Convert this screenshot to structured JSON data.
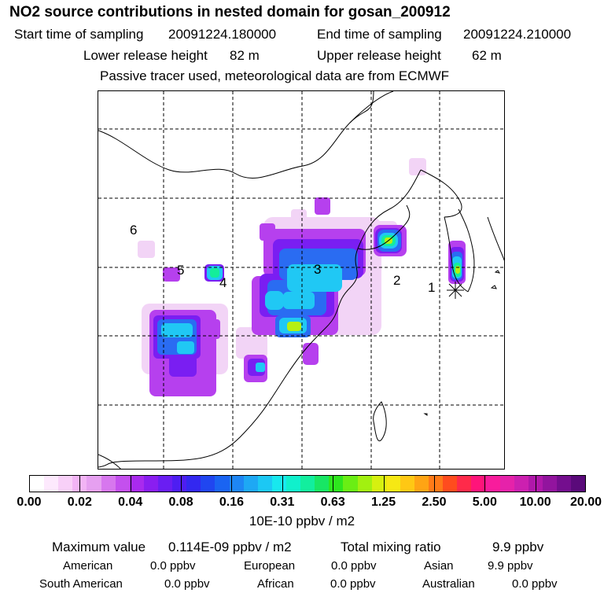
{
  "title": "NO2 source contributions in nested domain for gosan_200912",
  "sampling": {
    "start_label": "Start time of sampling",
    "start_value": "20091224.180000",
    "end_label": "End time of sampling",
    "end_value": "20091224.210000"
  },
  "release": {
    "lower_label": "Lower release height",
    "lower_value": "82 m",
    "upper_label": "Upper release height",
    "upper_value": "62 m"
  },
  "note": "Passive tracer used, meteorological data are from ECMWF",
  "map": {
    "region_labels": [
      "1",
      "2",
      "3",
      "4",
      "5",
      "6"
    ],
    "receptor_icon": "asterisk-marker"
  },
  "colorbar": {
    "ticks": [
      "0.00",
      "0.02",
      "0.04",
      "0.08",
      "0.16",
      "0.31",
      "0.63",
      "1.25",
      "2.50",
      "5.00",
      "10.00",
      "20.00"
    ],
    "colors": [
      "#ffffff",
      "#fde9fd",
      "#f8d0f8",
      "#f2b4f5",
      "#e6a0f0",
      "#d777ee",
      "#c450ee",
      "#a92aee",
      "#8a1ef0",
      "#6a1ef2",
      "#4e1ef2",
      "#3328f0",
      "#2046f0",
      "#1a64f2",
      "#1e86f4",
      "#1ea8f4",
      "#1cc8f4",
      "#18e8ee",
      "#10f0cc",
      "#12ee9e",
      "#18e664",
      "#2ee61e",
      "#6aee14",
      "#a2f010",
      "#d6f010",
      "#f6e814",
      "#ffc814",
      "#ffa414",
      "#ff7a18",
      "#ff4c1e",
      "#ff2a4a",
      "#ff147a",
      "#f81c9c",
      "#e622aa",
      "#cc20b0",
      "#b018aa",
      "#92149e",
      "#740e8e",
      "#5a0a7a"
    ],
    "unit": "10E-10 ppbv / m2"
  },
  "stats": {
    "max_label": "Maximum value",
    "max_value": "0.114E-09 ppbv / m2",
    "total_label": "Total mixing ratio",
    "total_value": "9.9 ppbv",
    "regions": [
      {
        "name": "American",
        "value": "0.0 ppbv"
      },
      {
        "name": "European",
        "value": "0.0 ppbv"
      },
      {
        "name": "Asian",
        "value": "9.9 ppbv"
      },
      {
        "name": "South American",
        "value": "0.0 ppbv"
      },
      {
        "name": "African",
        "value": "0.0 ppbv"
      },
      {
        "name": "Australian",
        "value": "0.0 ppbv"
      }
    ]
  }
}
